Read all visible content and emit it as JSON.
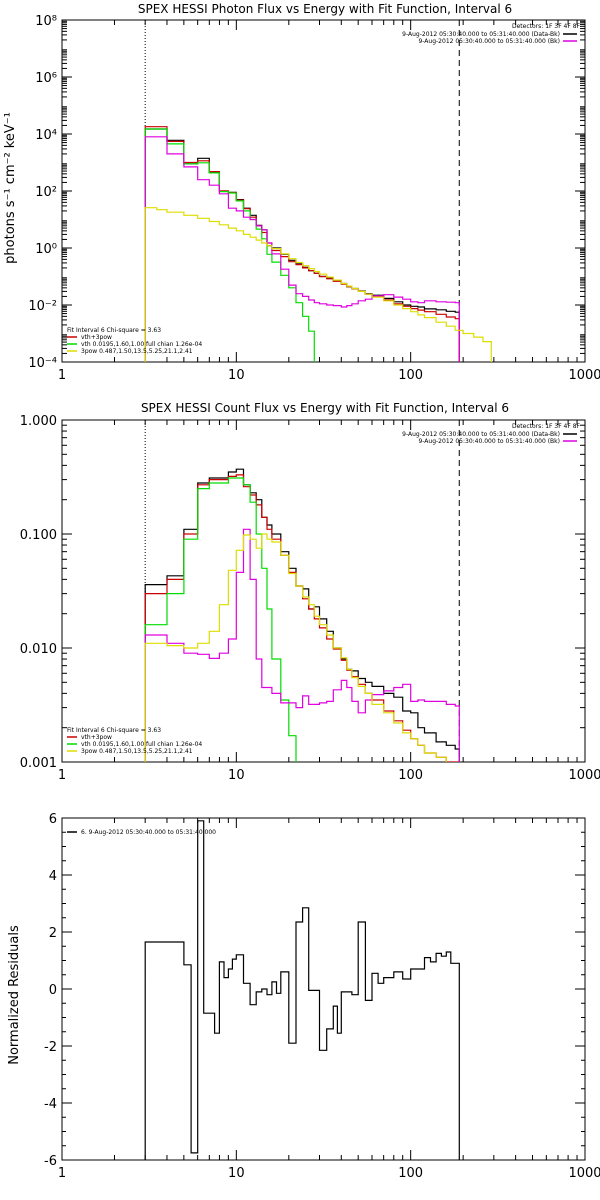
{
  "chart_data": [
    {
      "type": "line",
      "title": "SPEX HESSI Photon Flux vs Energy with Fit Function, Interval 6",
      "xlabel": "",
      "ylabel": "photons s⁻¹ cm⁻² keV⁻¹",
      "xscale": "log",
      "yscale": "log",
      "xlim": [
        1,
        1000
      ],
      "ylim": [
        0.0001,
        100000000
      ],
      "x_ticks": [
        "1",
        "10",
        "100",
        "1000"
      ],
      "y_ticks": [
        "10⁻⁴",
        "10⁻²",
        "10⁰",
        "10²",
        "10⁴",
        "10⁶",
        "10⁸"
      ],
      "y_tick_values": [
        0.0001,
        0.01,
        1,
        100,
        10000,
        1000000,
        100000000
      ],
      "vlines": [
        {
          "x": 3,
          "style": "dotted"
        },
        {
          "x": 190,
          "style": "dashed"
        }
      ],
      "detectors_text": "Detectors: 1F 3F 4F 8F",
      "header_lines": [
        {
          "text": "9-Aug-2012 05:30:40.000 to 05:31:40.000 (Data-Bk)",
          "color": "#000000"
        },
        {
          "text": "9-Aug-2012 05:30:40.000 to 05:31:40.000 (Bk)",
          "color": "#e000e0"
        }
      ],
      "legend": {
        "position": "bottom-left",
        "title": "Fit Interval 6    Chi-square = 3.63",
        "entries": [
          {
            "text": "vth+3pow",
            "color": "#cc0000"
          },
          {
            "text": "vth 0.0195,1.60,1.00  full chian 1.26e-04",
            "color": "#00dd00"
          },
          {
            "text": "3pow 0.487,1.50,13.5,5.25,21.1,2.41",
            "color": "#dddd00"
          }
        ]
      },
      "series": [
        {
          "color": "#000000",
          "x": [
            3,
            3.5,
            4,
            5,
            6,
            7,
            8,
            9,
            10,
            11,
            12,
            13,
            14,
            15,
            16,
            18,
            20,
            22,
            24,
            26,
            28,
            30,
            33,
            36,
            40,
            43,
            46,
            50,
            55,
            60,
            70,
            80,
            90,
            100,
            110,
            120,
            140,
            160,
            180,
            190
          ],
          "y": [
            15000,
            15000,
            6000,
            900,
            1400,
            450,
            100,
            90,
            50,
            25,
            14,
            6.2,
            4.3,
            1.2,
            1.0,
            0.6,
            0.37,
            0.28,
            0.21,
            0.16,
            0.13,
            0.1,
            0.09,
            0.072,
            0.057,
            0.044,
            0.038,
            0.031,
            0.025,
            0.022,
            0.017,
            0.013,
            0.01,
            0.009,
            0.0085,
            0.0073,
            0.0068,
            0.006,
            0.0056,
            0.0056
          ]
        },
        {
          "color": "#cc0000",
          "x": [
            3,
            3.5,
            4,
            5,
            6,
            7,
            8,
            9,
            10,
            11,
            12,
            13,
            14,
            15,
            16,
            18,
            20,
            22,
            24,
            26,
            28,
            30,
            33,
            36,
            40,
            43,
            46,
            50,
            55,
            60,
            70,
            80,
            90,
            100,
            110,
            120,
            140,
            160,
            180,
            190
          ],
          "y": [
            18000,
            18000,
            5500,
            1000,
            1150,
            480,
            100,
            88,
            48,
            24,
            12,
            6.0,
            3.5,
            1.5,
            0.82,
            0.5,
            0.33,
            0.26,
            0.2,
            0.16,
            0.13,
            0.1,
            0.083,
            0.068,
            0.054,
            0.044,
            0.037,
            0.03,
            0.024,
            0.02,
            0.015,
            0.011,
            0.009,
            0.0075,
            0.0066,
            0.0058,
            0.0047,
            0.0038,
            0.0033,
            0.0033
          ]
        },
        {
          "color": "#00dd00",
          "x": [
            3,
            3.5,
            4,
            5,
            6,
            7,
            8,
            9,
            10,
            11,
            12,
            13,
            14,
            15,
            16,
            18,
            20,
            22,
            24,
            26,
            28
          ],
          "y": [
            15000,
            15000,
            4500,
            900,
            980,
            430,
            95,
            85,
            45,
            20,
            10,
            4.6,
            2.1,
            0.6,
            0.32,
            0.11,
            0.04,
            0.012,
            0.004,
            0.0012,
            0.00025
          ]
        },
        {
          "color": "#e000e0",
          "x": [
            3,
            3.5,
            4,
            5,
            6,
            7,
            8,
            9,
            10,
            11,
            12,
            13,
            14,
            15,
            16,
            18,
            20,
            22,
            24,
            26,
            28,
            30,
            33,
            36,
            40,
            43,
            46,
            50,
            55,
            60,
            70,
            80,
            90,
            100,
            110,
            120,
            140,
            160,
            180,
            190
          ],
          "y": [
            8000,
            8000,
            2000,
            700,
            250,
            160,
            80,
            25,
            20,
            12,
            10,
            6.0,
            4.3,
            1.5,
            0.62,
            0.18,
            0.05,
            0.025,
            0.02,
            0.015,
            0.012,
            0.011,
            0.01,
            0.0095,
            0.0085,
            0.0095,
            0.011,
            0.014,
            0.016,
            0.021,
            0.023,
            0.019,
            0.016,
            0.013,
            0.012,
            0.014,
            0.013,
            0.0125,
            0.012,
            0.012
          ]
        },
        {
          "color": "#dddd00",
          "x": [
            3,
            3.5,
            4,
            5,
            6,
            7,
            8,
            9,
            10,
            11,
            12,
            13,
            14,
            15,
            16,
            18,
            20,
            22,
            24,
            26,
            28,
            30,
            33,
            36,
            40,
            43,
            46,
            50,
            55,
            60,
            70,
            80,
            90,
            100,
            110,
            120,
            140,
            160,
            180,
            200,
            230,
            260,
            290
          ],
          "y": [
            26,
            22,
            18,
            14,
            11,
            8.5,
            6.5,
            5.0,
            4.0,
            3.0,
            2.4,
            1.9,
            1.5,
            1.2,
            0.95,
            0.62,
            0.42,
            0.31,
            0.24,
            0.19,
            0.15,
            0.12,
            0.095,
            0.075,
            0.057,
            0.046,
            0.038,
            0.03,
            0.024,
            0.019,
            0.014,
            0.01,
            0.0075,
            0.0058,
            0.0045,
            0.0036,
            0.0025,
            0.0018,
            0.0013,
            0.001,
            0.00075,
            0.00052,
            0.00037
          ]
        }
      ]
    },
    {
      "type": "line",
      "title": "SPEX HESSI Count Flux vs Energy with Fit Function, Interval 6",
      "xlabel": "",
      "ylabel": "",
      "xscale": "log",
      "yscale": "log",
      "xlim": [
        1,
        1000
      ],
      "ylim": [
        0.001,
        1
      ],
      "x_ticks": [
        "1",
        "10",
        "100",
        "1000"
      ],
      "y_ticks": [
        "0.001",
        "0.010",
        "0.100",
        "1.000"
      ],
      "y_tick_values": [
        0.001,
        0.01,
        0.1,
        1
      ],
      "vlines": [
        {
          "x": 3,
          "style": "dotted"
        },
        {
          "x": 190,
          "style": "dashed"
        }
      ],
      "detectors_text": "Detectors: 1F 3F 4F 8F",
      "header_lines": [
        {
          "text": "9-Aug-2012 05:30:40.000 to 05:31:40.000 (Data-Bk)",
          "color": "#000000"
        },
        {
          "text": "9-Aug-2012 05:30:40.000 to 05:31:40.000 (Bk)",
          "color": "#e000e0"
        }
      ],
      "legend": {
        "position": "bottom-left",
        "title": "Fit Interval 6    Chi-square = 3.63",
        "entries": [
          {
            "text": "vth+3pow",
            "color": "#cc0000"
          },
          {
            "text": "vth 0.0195,1.60,1.00  full chian 1.26e-04",
            "color": "#00dd00"
          },
          {
            "text": "3pow 0.487,1.50,13.5,5.25,21.1,2.41",
            "color": "#dddd00"
          }
        ]
      },
      "series": [
        {
          "color": "#000000",
          "x": [
            3,
            3.5,
            4,
            5,
            6,
            7,
            8,
            9,
            10,
            11,
            12,
            13,
            14,
            15,
            16,
            18,
            20,
            22,
            24,
            26,
            28,
            30,
            33,
            36,
            40,
            43,
            46,
            50,
            55,
            60,
            70,
            80,
            90,
            100,
            110,
            120,
            140,
            160,
            180,
            190
          ],
          "y": [
            0.036,
            0.036,
            0.043,
            0.11,
            0.28,
            0.31,
            0.31,
            0.35,
            0.37,
            0.27,
            0.23,
            0.2,
            0.14,
            0.12,
            0.1,
            0.07,
            0.05,
            0.035,
            0.033,
            0.022,
            0.023,
            0.018,
            0.014,
            0.01,
            0.008,
            0.0065,
            0.0063,
            0.0054,
            0.005,
            0.0046,
            0.004,
            0.0037,
            0.0028,
            0.0027,
            0.002,
            0.0018,
            0.0015,
            0.0014,
            0.0013,
            0.0013
          ]
        },
        {
          "color": "#cc0000",
          "x": [
            3,
            3.5,
            4,
            5,
            6,
            7,
            8,
            9,
            10,
            11,
            12,
            13,
            14,
            15,
            16,
            18,
            20,
            22,
            24,
            26,
            28,
            30,
            33,
            36,
            40,
            43,
            46,
            50,
            55,
            60,
            70,
            80,
            90,
            100,
            110,
            120,
            140,
            160,
            180,
            190
          ],
          "y": [
            0.03,
            0.03,
            0.04,
            0.1,
            0.27,
            0.3,
            0.3,
            0.32,
            0.33,
            0.26,
            0.22,
            0.18,
            0.14,
            0.11,
            0.09,
            0.065,
            0.046,
            0.035,
            0.027,
            0.022,
            0.018,
            0.015,
            0.012,
            0.0098,
            0.0078,
            0.0064,
            0.0056,
            0.0048,
            0.004,
            0.0035,
            0.0028,
            0.0023,
            0.0019,
            0.0016,
            0.0014,
            0.0012,
            0.0011,
            0.001,
            0.001,
            0.001
          ]
        },
        {
          "color": "#00dd00",
          "x": [
            3,
            3.5,
            4,
            5,
            6,
            7,
            8,
            9,
            10,
            11,
            12,
            13,
            14,
            15,
            16,
            18,
            20,
            22
          ],
          "y": [
            0.016,
            0.016,
            0.03,
            0.09,
            0.25,
            0.28,
            0.28,
            0.31,
            0.31,
            0.27,
            0.19,
            0.1,
            0.05,
            0.022,
            0.008,
            0.0035,
            0.0017,
            0.001
          ]
        },
        {
          "color": "#e000e0",
          "x": [
            3,
            3.5,
            4,
            5,
            6,
            7,
            8,
            9,
            10,
            11,
            12,
            13,
            14,
            15,
            16,
            18,
            20,
            22,
            24,
            26,
            28,
            30,
            33,
            36,
            40,
            43,
            46,
            50,
            55,
            60,
            70,
            80,
            90,
            100,
            110,
            120,
            140,
            160,
            180,
            190
          ],
          "y": [
            0.013,
            0.013,
            0.011,
            0.009,
            0.0088,
            0.0081,
            0.009,
            0.012,
            0.046,
            0.11,
            0.04,
            0.008,
            0.0045,
            0.0045,
            0.004,
            0.0033,
            0.0033,
            0.003,
            0.0038,
            0.0032,
            0.0032,
            0.0033,
            0.0034,
            0.0043,
            0.0052,
            0.0045,
            0.0034,
            0.0027,
            0.0035,
            0.0039,
            0.0042,
            0.0045,
            0.0048,
            0.0034,
            0.0035,
            0.0034,
            0.0034,
            0.0032,
            0.0031,
            0.0031
          ]
        },
        {
          "color": "#dddd00",
          "x": [
            3,
            3.5,
            4,
            5,
            6,
            7,
            8,
            9,
            10,
            11,
            12,
            13,
            14,
            15,
            16,
            18,
            20,
            22,
            24,
            26,
            28,
            30,
            33,
            36,
            40,
            43,
            46,
            50,
            55,
            60,
            70,
            80,
            90,
            100,
            110,
            120,
            140,
            160
          ],
          "y": [
            0.011,
            0.011,
            0.0105,
            0.01,
            0.011,
            0.014,
            0.024,
            0.048,
            0.072,
            0.098,
            0.09,
            0.075,
            0.1,
            0.09,
            0.085,
            0.065,
            0.045,
            0.035,
            0.028,
            0.024,
            0.019,
            0.016,
            0.013,
            0.01,
            0.0082,
            0.0065,
            0.0055,
            0.0046,
            0.004,
            0.0032,
            0.0027,
            0.0022,
            0.0018,
            0.0016,
            0.0014,
            0.0012,
            0.0011,
            0.001
          ]
        }
      ]
    },
    {
      "type": "line",
      "title": "",
      "xlabel": "",
      "ylabel": "Normalized Residuals",
      "xscale": "log",
      "yscale": "linear",
      "xlim": [
        1,
        1000
      ],
      "ylim": [
        -6,
        6
      ],
      "x_ticks": [
        "1",
        "10",
        "100",
        "1000"
      ],
      "y_ticks": [
        "-6",
        "-4",
        "-2",
        "0",
        "2",
        "4",
        "6"
      ],
      "y_tick_values": [
        -6,
        -4,
        -2,
        0,
        2,
        4,
        6
      ],
      "vlines": [],
      "legend": {
        "position": "top-left",
        "title": "",
        "entries": [
          {
            "text": "6. 9-Aug-2012 05:30:40.000 to 05:31:40.000",
            "color": "#000000"
          }
        ]
      },
      "series": [
        {
          "color": "#000000",
          "step": true,
          "x": [
            3,
            4,
            5,
            5.5,
            6,
            6.5,
            7,
            7.5,
            8,
            8.5,
            9,
            9.5,
            10,
            11,
            12,
            13,
            14,
            15,
            16,
            17,
            18,
            20,
            22,
            24,
            26,
            28,
            30,
            33,
            36,
            38,
            40,
            43,
            46,
            50,
            55,
            60,
            65,
            70,
            80,
            90,
            100,
            110,
            120,
            130,
            140,
            150,
            160,
            170,
            180,
            190
          ],
          "y": [
            1.65,
            1.65,
            0.85,
            -5.75,
            5.9,
            -0.85,
            -0.85,
            -1.55,
            0.95,
            0.4,
            0.7,
            1.05,
            1.2,
            0.2,
            -0.55,
            -0.1,
            0.0,
            -0.2,
            0.25,
            -0.15,
            0.6,
            -1.9,
            2.35,
            2.85,
            -0.05,
            -0.05,
            -2.15,
            -1.4,
            -0.6,
            -1.55,
            -0.1,
            -0.1,
            -0.2,
            2.35,
            -0.4,
            0.55,
            0.2,
            0.4,
            0.6,
            0.35,
            0.7,
            0.7,
            1.1,
            0.95,
            1.25,
            1.15,
            1.3,
            0.9,
            0.9,
            0.9
          ]
        }
      ]
    }
  ]
}
